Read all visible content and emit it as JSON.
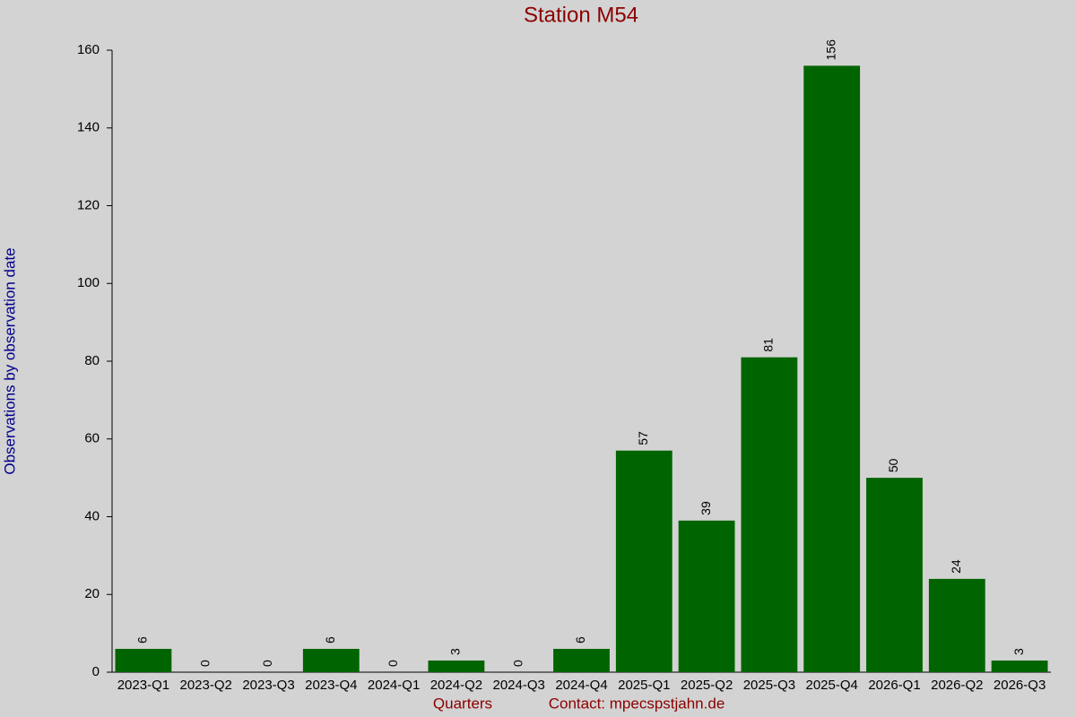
{
  "chart_data": {
    "type": "bar",
    "title": "Station M54",
    "x_label": "Quarters",
    "y_label": "Observations by observation date",
    "annotation": "Contact: mpecspstjahn.de",
    "categories": [
      "2023-Q1",
      "2023-Q2",
      "2023-Q3",
      "2023-Q4",
      "2024-Q1",
      "2024-Q2",
      "2024-Q3",
      "2024-Q4",
      "2025-Q1",
      "2025-Q2",
      "2025-Q3",
      "2025-Q4",
      "2026-Q1",
      "2026-Q2",
      "2026-Q3"
    ],
    "values": [
      6,
      0,
      0,
      6,
      0,
      3,
      0,
      6,
      57,
      39,
      81,
      156,
      50,
      24,
      3
    ],
    "color": "#006400",
    "ylim": [
      0,
      160
    ],
    "yticks": [
      0,
      20,
      40,
      60,
      80,
      100,
      120,
      140,
      160
    ],
    "data_labels": true
  }
}
